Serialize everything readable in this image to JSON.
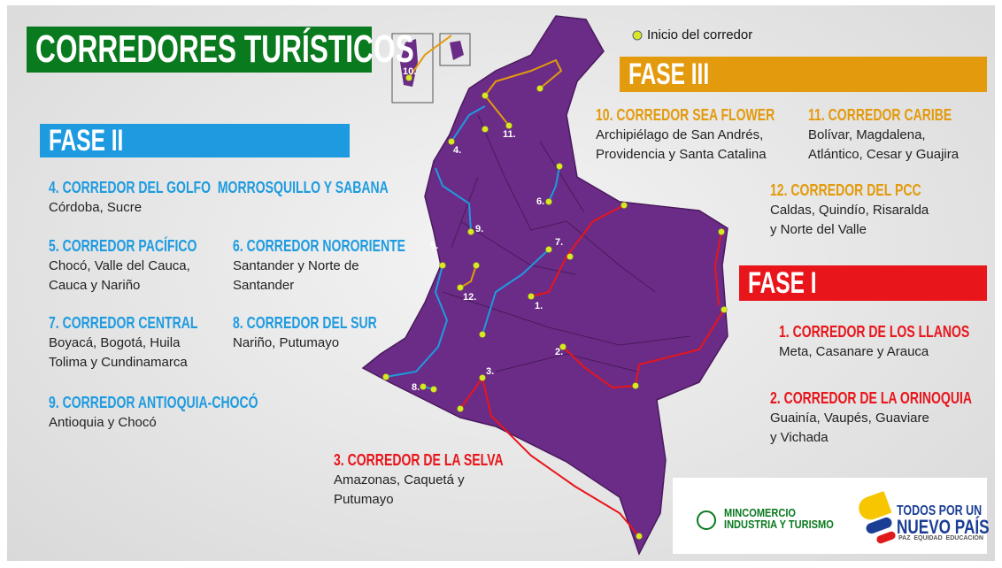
{
  "title": "CORREDORES TURÍSTICOS",
  "legend": "Inicio del corredor",
  "phases": [
    {
      "label": "FASE II",
      "color": "#1e9be0",
      "corridors": [
        {
          "name": "4. CORREDOR DEL GOLFO  MORROSQUILLO Y SABANA",
          "regions": [
            "Córdoba, Sucre"
          ]
        },
        {
          "name": "5. CORREDOR PACÍFICO",
          "regions": [
            "Chocó, Valle del Cauca,",
            "Cauca y Nariño"
          ]
        },
        {
          "name": "6. CORREDOR NORORIENTE",
          "regions": [
            "Santander y Norte de",
            "Santander"
          ]
        },
        {
          "name": "7. CORREDOR CENTRAL",
          "regions": [
            "Boyacá, Bogotá, Huila",
            "Tolima y Cundinamarca"
          ]
        },
        {
          "name": "8. CORREDOR DEL SUR",
          "regions": [
            "Nariño, Putumayo"
          ]
        },
        {
          "name": "9. CORREDOR ANTIOQUIA-CHOCÓ",
          "regions": [
            "Antioquia y Chocó"
          ]
        }
      ]
    },
    {
      "label": "FASE III",
      "color": "#e39a0c",
      "corridors": [
        {
          "name": "10. CORREDOR SEA FLOWER",
          "regions": [
            "Archipiélago de San Andrés,",
            "Providencia y Santa Catalina"
          ]
        },
        {
          "name": "11. CORREDOR CARIBE",
          "regions": [
            "Bolívar, Magdalena,",
            "Atlántico, Cesar y Guajira"
          ]
        },
        {
          "name": "12. CORREDOR DEL PCC",
          "regions": [
            "Caldas, Quindío, Risaralda",
            "y Norte del Valle"
          ]
        }
      ]
    },
    {
      "label": "FASE I",
      "color": "#e8151b",
      "corridors": [
        {
          "name": "1. CORREDOR DE LOS LLANOS",
          "regions": [
            "Meta, Casanare y Arauca"
          ]
        },
        {
          "name": "2. CORREDOR DE LA ORINOQUIA",
          "regions": [
            "Guainía, Vaupés, Guaviare",
            "y Vichada"
          ]
        },
        {
          "name": "3. CORREDOR DE LA SELVA",
          "regions": [
            "Amazonas, Caquetá y",
            "Putumayo"
          ]
        }
      ]
    }
  ],
  "map_labels": [
    "10.",
    "11.",
    "4.",
    "6.",
    "9.",
    "5.",
    "7.",
    "12.",
    "1.",
    "2.",
    "8.",
    "3."
  ],
  "logos": {
    "ministry": [
      "MINCOMERCIO",
      "INDUSTRIA Y TURISMO"
    ],
    "slogan": [
      "TODOS POR UN",
      "NUEVO PAÍS"
    ],
    "motto": "PAZ  EQUIDAD  EDUCACIÓN"
  }
}
